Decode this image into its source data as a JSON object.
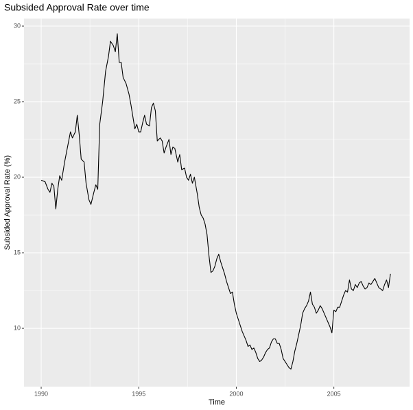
{
  "chart_data": {
    "type": "line",
    "title": "Subsided Approval Rate over time",
    "x_label": "Time",
    "y_label": "Subsided Approval Rate (%)",
    "x": [
      1990.0,
      1990.2,
      1990.35,
      1990.45,
      1990.55,
      1990.65,
      1990.75,
      1990.85,
      1990.95,
      1991.05,
      1991.2,
      1991.35,
      1991.5,
      1991.6,
      1991.75,
      1991.85,
      1991.95,
      1992.05,
      1992.2,
      1992.3,
      1992.45,
      1992.55,
      1992.7,
      1992.8,
      1992.9,
      1993.0,
      1993.15,
      1993.3,
      1993.45,
      1993.55,
      1993.7,
      1993.8,
      1993.9,
      1994.0,
      1994.1,
      1994.2,
      1994.35,
      1994.5,
      1994.6,
      1994.7,
      1994.8,
      1994.9,
      1995.0,
      1995.1,
      1995.2,
      1995.3,
      1995.4,
      1995.55,
      1995.65,
      1995.75,
      1995.85,
      1995.95,
      1996.1,
      1996.2,
      1996.3,
      1996.4,
      1996.55,
      1996.65,
      1996.75,
      1996.85,
      1997.0,
      1997.1,
      1997.2,
      1997.35,
      1997.45,
      1997.55,
      1997.65,
      1997.75,
      1997.85,
      1998.0,
      1998.1,
      1998.2,
      1998.3,
      1998.4,
      1998.5,
      1998.6,
      1998.7,
      1998.8,
      1998.9,
      1999.0,
      1999.1,
      1999.2,
      1999.3,
      1999.4,
      1999.5,
      1999.6,
      1999.7,
      1999.8,
      1999.9,
      2000.0,
      2000.1,
      2000.2,
      2000.3,
      2000.4,
      2000.5,
      2000.6,
      2000.7,
      2000.8,
      2000.9,
      2001.0,
      2001.1,
      2001.2,
      2001.3,
      2001.4,
      2001.5,
      2001.6,
      2001.7,
      2001.8,
      2001.9,
      2002.0,
      2002.1,
      2002.2,
      2002.3,
      2002.4,
      2002.5,
      2002.6,
      2002.7,
      2002.8,
      2002.9,
      2003.0,
      2003.1,
      2003.2,
      2003.3,
      2003.4,
      2003.5,
      2003.6,
      2003.7,
      2003.8,
      2003.9,
      2004.0,
      2004.1,
      2004.2,
      2004.3,
      2004.4,
      2004.5,
      2004.6,
      2004.7,
      2004.8,
      2004.9,
      2005.0,
      2005.1,
      2005.2,
      2005.3,
      2005.4,
      2005.5,
      2005.6,
      2005.7,
      2005.8,
      2005.9,
      2006.0,
      2006.1,
      2006.2,
      2006.3,
      2006.4,
      2006.5,
      2006.6,
      2006.7,
      2006.8,
      2006.9,
      2007.0,
      2007.1,
      2007.2,
      2007.3,
      2007.4,
      2007.5,
      2007.6,
      2007.7,
      2007.8,
      2007.9
    ],
    "series": [
      {
        "color": "#000000",
        "values": [
          19.8,
          19.7,
          19.2,
          19.0,
          19.6,
          19.4,
          17.9,
          19.2,
          20.1,
          19.8,
          21.0,
          22.0,
          23.0,
          22.6,
          23.0,
          24.1,
          22.8,
          21.2,
          21.0,
          19.6,
          18.5,
          18.2,
          19.0,
          19.5,
          19.2,
          23.5,
          25.0,
          27.0,
          28.0,
          29.0,
          28.7,
          28.3,
          29.5,
          27.6,
          27.6,
          26.6,
          26.2,
          25.5,
          24.8,
          24.0,
          23.2,
          23.5,
          23.0,
          23.0,
          23.6,
          24.1,
          23.5,
          23.4,
          24.6,
          24.9,
          24.4,
          22.4,
          22.6,
          22.4,
          21.6,
          22.0,
          22.5,
          21.5,
          22.0,
          21.9,
          21.0,
          21.5,
          20.5,
          20.6,
          20.0,
          19.8,
          20.2,
          19.6,
          20.0,
          18.9,
          18.0,
          17.5,
          17.3,
          16.9,
          16.2,
          14.8,
          13.7,
          13.8,
          14.1,
          14.6,
          14.9,
          14.4,
          14.0,
          13.6,
          13.1,
          12.7,
          12.3,
          12.4,
          11.6,
          11.0,
          10.6,
          10.2,
          9.8,
          9.5,
          9.2,
          8.8,
          8.9,
          8.6,
          8.7,
          8.4,
          8.0,
          7.8,
          7.9,
          8.1,
          8.4,
          8.6,
          8.7,
          9.1,
          9.3,
          9.3,
          9.0,
          9.0,
          8.6,
          8.0,
          7.8,
          7.6,
          7.4,
          7.3,
          7.8,
          8.5,
          9.0,
          9.6,
          10.2,
          11.0,
          11.3,
          11.5,
          11.8,
          12.4,
          11.6,
          11.4,
          11.0,
          11.2,
          11.5,
          11.3,
          11.0,
          10.7,
          10.4,
          10.1,
          9.7,
          11.2,
          11.1,
          11.4,
          11.4,
          11.8,
          12.2,
          12.5,
          12.4,
          13.2,
          12.6,
          12.5,
          12.9,
          12.7,
          13.0,
          13.1,
          12.8,
          12.6,
          12.7,
          13.0,
          12.9,
          13.1,
          13.3,
          13.0,
          12.7,
          12.6,
          12.5,
          12.9,
          13.2,
          12.7,
          13.6
        ]
      }
    ],
    "xlim": [
      1989.12,
      2008.88
    ],
    "ylim": [
      6.14,
      30.5
    ],
    "xticks": [
      1990,
      1995,
      2000,
      2005
    ],
    "yticks": [
      10,
      15,
      20,
      25,
      30
    ],
    "grid": true
  }
}
